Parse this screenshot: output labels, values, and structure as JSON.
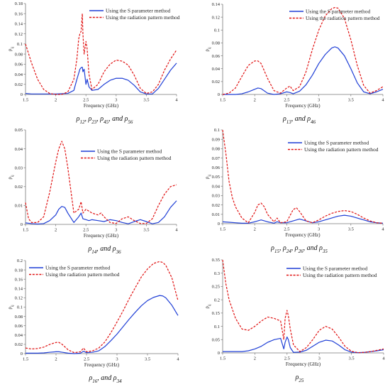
{
  "figure": {
    "xlabel": "Frequency (GHz)",
    "legend": [
      "Using the S parameter method",
      "Using the radiation pattern method"
    ],
    "colors": {
      "s_param": "#1f3fd6",
      "rad_pattern": "#e01010",
      "axis": "#777777"
    }
  },
  "chart_data": [
    {
      "type": "line",
      "caption": "ρ12, ρ23, ρ45, and ρ56",
      "ylabel": "ρ_ij",
      "xlim": [
        1.5,
        4
      ],
      "ylim": [
        0,
        0.18
      ],
      "xticks": [
        "1.5",
        "2",
        "2.5",
        "3",
        "3.5",
        "4"
      ],
      "yticks": [
        "0",
        "0.02",
        "0.04",
        "0.06",
        "0.08",
        "0.1",
        "0.12",
        "0.14",
        "0.16",
        "0.18"
      ],
      "series": [
        {
          "name": "Using the S parameter method",
          "style": "solid",
          "x": [
            1.5,
            1.6,
            1.8,
            2.0,
            2.2,
            2.3,
            2.35,
            2.4,
            2.42,
            2.44,
            2.45,
            2.47,
            2.5,
            2.52,
            2.55,
            2.6,
            2.7,
            2.8,
            2.9,
            3.0,
            3.1,
            3.2,
            3.3,
            3.4,
            3.5,
            3.6,
            3.7,
            3.8,
            3.9,
            4.0
          ],
          "y": [
            0.002,
            0.001,
            0.001,
            0.001,
            0.002,
            0.008,
            0.03,
            0.05,
            0.053,
            0.054,
            0.045,
            0.05,
            0.02,
            0.03,
            0.015,
            0.008,
            0.01,
            0.02,
            0.028,
            0.032,
            0.032,
            0.028,
            0.018,
            0.005,
            0.001,
            0.001,
            0.012,
            0.03,
            0.048,
            0.062
          ]
        },
        {
          "name": "Using the radiation pattern method",
          "style": "dashed",
          "x": [
            1.5,
            1.6,
            1.7,
            1.8,
            1.9,
            2.0,
            2.1,
            2.2,
            2.3,
            2.35,
            2.38,
            2.4,
            2.42,
            2.44,
            2.45,
            2.47,
            2.5,
            2.52,
            2.55,
            2.6,
            2.7,
            2.8,
            2.9,
            3.0,
            3.1,
            3.2,
            3.3,
            3.4,
            3.5,
            3.6,
            3.7,
            3.8,
            3.9,
            4.0
          ],
          "y": [
            0.1,
            0.062,
            0.03,
            0.01,
            0.002,
            0.0,
            0.0,
            0.005,
            0.03,
            0.07,
            0.11,
            0.12,
            0.125,
            0.16,
            0.12,
            0.08,
            0.105,
            0.09,
            0.04,
            0.01,
            0.02,
            0.045,
            0.06,
            0.068,
            0.066,
            0.058,
            0.038,
            0.012,
            0.002,
            0.005,
            0.02,
            0.048,
            0.07,
            0.088
          ]
        }
      ]
    },
    {
      "type": "line",
      "caption": "ρ13, and ρ46",
      "ylabel": "ρ_ij",
      "xlim": [
        1.5,
        4
      ],
      "ylim": [
        0,
        0.14
      ],
      "xticks": [
        "1.5",
        "2",
        "2.5",
        "3",
        "3.5",
        "4"
      ],
      "yticks": [
        "0",
        "0.02",
        "0.04",
        "0.06",
        "0.08",
        "0.1",
        "0.12",
        "0.14"
      ],
      "series": [
        {
          "name": "Using the S parameter method",
          "style": "solid",
          "x": [
            1.5,
            1.7,
            1.8,
            1.9,
            2.0,
            2.05,
            2.1,
            2.2,
            2.3,
            2.4,
            2.5,
            2.55,
            2.6,
            2.7,
            2.8,
            2.9,
            3.0,
            3.1,
            3.2,
            3.25,
            3.3,
            3.4,
            3.5,
            3.6,
            3.7,
            3.8,
            3.9,
            4.0
          ],
          "y": [
            0.0,
            0.0,
            0.001,
            0.004,
            0.008,
            0.01,
            0.009,
            0.002,
            0.0,
            0.001,
            0.004,
            0.003,
            0.001,
            0.005,
            0.015,
            0.03,
            0.048,
            0.062,
            0.072,
            0.074,
            0.072,
            0.06,
            0.04,
            0.018,
            0.004,
            0.001,
            0.004,
            0.008
          ]
        },
        {
          "name": "Using the radiation pattern method",
          "style": "dashed",
          "x": [
            1.5,
            1.6,
            1.7,
            1.8,
            1.9,
            2.0,
            2.05,
            2.1,
            2.2,
            2.3,
            2.4,
            2.5,
            2.55,
            2.6,
            2.7,
            2.8,
            2.9,
            3.0,
            3.1,
            3.2,
            3.25,
            3.3,
            3.4,
            3.5,
            3.6,
            3.7,
            3.8,
            3.9,
            4.0
          ],
          "y": [
            0.0,
            0.002,
            0.01,
            0.028,
            0.045,
            0.052,
            0.052,
            0.048,
            0.025,
            0.006,
            0.002,
            0.01,
            0.013,
            0.006,
            0.012,
            0.035,
            0.07,
            0.1,
            0.122,
            0.133,
            0.135,
            0.134,
            0.118,
            0.085,
            0.045,
            0.014,
            0.002,
            0.006,
            0.012
          ]
        }
      ]
    },
    {
      "type": "line",
      "caption": "ρ14, and ρ36",
      "ylabel": "ρ_ij",
      "xlim": [
        1.5,
        4
      ],
      "ylim": [
        0,
        0.05
      ],
      "xticks": [
        "1.5",
        "2",
        "2.5",
        "3",
        "3.5",
        "4"
      ],
      "yticks": [
        "0",
        "0.01",
        "0.02",
        "0.03",
        "0.04",
        "0.05"
      ],
      "series": [
        {
          "name": "Using the S parameter method",
          "style": "solid",
          "x": [
            1.5,
            1.6,
            1.7,
            1.8,
            1.9,
            2.0,
            2.05,
            2.1,
            2.15,
            2.2,
            2.3,
            2.38,
            2.42,
            2.45,
            2.5,
            2.55,
            2.6,
            2.7,
            2.8,
            2.9,
            3.0,
            3.1,
            3.2,
            3.3,
            3.4,
            3.5,
            3.6,
            3.7,
            3.8,
            3.9,
            4.0
          ],
          "y": [
            0.0008,
            0.0004,
            0.0002,
            0.0004,
            0.002,
            0.005,
            0.008,
            0.0095,
            0.009,
            0.006,
            0.001,
            0.004,
            0.006,
            0.003,
            0.0025,
            0.002,
            0.0025,
            0.002,
            0.0015,
            0.0025,
            0.002,
            0.001,
            0.0003,
            0.0015,
            0.0025,
            0.0015,
            0.0003,
            0.001,
            0.004,
            0.009,
            0.0125
          ]
        },
        {
          "name": "Using the radiation pattern method",
          "style": "dashed",
          "x": [
            1.5,
            1.55,
            1.6,
            1.7,
            1.8,
            1.9,
            2.0,
            2.05,
            2.1,
            2.15,
            2.2,
            2.3,
            2.38,
            2.42,
            2.45,
            2.5,
            2.55,
            2.6,
            2.7,
            2.75,
            2.8,
            2.9,
            3.0,
            3.1,
            3.2,
            3.3,
            3.4,
            3.5,
            3.6,
            3.7,
            3.8,
            3.9,
            4.0
          ],
          "y": [
            0.0115,
            0.003,
            0.001,
            0.001,
            0.004,
            0.017,
            0.033,
            0.04,
            0.044,
            0.04,
            0.03,
            0.006,
            0.008,
            0.012,
            0.006,
            0.008,
            0.007,
            0.006,
            0.005,
            0.006,
            0.004,
            0.001,
            0.0005,
            0.003,
            0.004,
            0.002,
            0.0005,
            0.0005,
            0.003,
            0.01,
            0.016,
            0.02,
            0.021
          ]
        }
      ]
    },
    {
      "type": "line",
      "caption": "ρ15, ρ24, ρ26, and ρ35",
      "ylabel": "ρ_ij",
      "xlim": [
        1.5,
        4
      ],
      "ylim": [
        0,
        0.1
      ],
      "xticks": [
        "1.5",
        "2",
        "2.5",
        "3",
        "3.5",
        "4"
      ],
      "yticks": [
        "0",
        "0.01",
        "0.02",
        "0.03",
        "0.04",
        "0.05",
        "0.06",
        "0.07",
        "0.08",
        "0.09",
        "0.1"
      ],
      "series": [
        {
          "name": "Using the S parameter method",
          "style": "solid",
          "x": [
            1.5,
            1.6,
            1.7,
            1.8,
            1.9,
            2.0,
            2.1,
            2.2,
            2.3,
            2.35,
            2.4,
            2.5,
            2.6,
            2.7,
            2.8,
            2.9,
            3.0,
            3.1,
            3.2,
            3.3,
            3.4,
            3.5,
            3.6,
            3.7,
            3.8,
            3.9,
            4.0
          ],
          "y": [
            0.002,
            0.0015,
            0.001,
            0.0005,
            0.0005,
            0.002,
            0.004,
            0.002,
            0.0005,
            0.002,
            0.001,
            0.001,
            0.003,
            0.005,
            0.003,
            0.001,
            0.002,
            0.004,
            0.006,
            0.008,
            0.009,
            0.008,
            0.006,
            0.004,
            0.002,
            0.001,
            0.0005
          ]
        },
        {
          "name": "Using the radiation pattern method",
          "style": "dashed",
          "x": [
            1.5,
            1.55,
            1.6,
            1.65,
            1.7,
            1.8,
            1.9,
            2.0,
            2.05,
            2.1,
            2.15,
            2.2,
            2.3,
            2.35,
            2.4,
            2.5,
            2.6,
            2.65,
            2.7,
            2.8,
            2.9,
            3.0,
            3.1,
            3.2,
            3.3,
            3.4,
            3.5,
            3.6,
            3.7,
            3.8,
            3.9,
            4.0
          ],
          "y": [
            0.1,
            0.075,
            0.045,
            0.028,
            0.018,
            0.006,
            0.001,
            0.012,
            0.02,
            0.022,
            0.018,
            0.01,
            0.002,
            0.006,
            0.001,
            0.002,
            0.015,
            0.017,
            0.013,
            0.003,
            0.001,
            0.004,
            0.008,
            0.011,
            0.013,
            0.014,
            0.013,
            0.01,
            0.006,
            0.003,
            0.001,
            0.0005
          ]
        }
      ]
    },
    {
      "type": "line",
      "caption": "ρ16, and ρ34",
      "ylabel": "ρ_ij",
      "xlim": [
        1.5,
        4
      ],
      "ylim": [
        0,
        0.2
      ],
      "xticks": [
        "1.5",
        "2",
        "2.5",
        "3",
        "3.5",
        "4"
      ],
      "yticks": [
        "0",
        "0.02",
        "0.04",
        "0.06",
        "0.08",
        "0.1",
        "0.12",
        "0.14",
        "0.16",
        "0.18",
        "0.2"
      ],
      "series": [
        {
          "name": "Using the S parameter method",
          "style": "solid",
          "x": [
            1.5,
            1.6,
            1.7,
            1.8,
            1.9,
            2.0,
            2.05,
            2.1,
            2.2,
            2.3,
            2.4,
            2.45,
            2.5,
            2.6,
            2.7,
            2.8,
            2.9,
            3.0,
            3.1,
            3.2,
            3.3,
            3.4,
            3.5,
            3.6,
            3.7,
            3.75,
            3.8,
            3.9,
            4.0
          ],
          "y": [
            0.001,
            0.001,
            0.001,
            0.0015,
            0.003,
            0.004,
            0.004,
            0.003,
            0.001,
            0.0,
            0.001,
            0.005,
            0.002,
            0.003,
            0.006,
            0.015,
            0.028,
            0.042,
            0.058,
            0.074,
            0.089,
            0.103,
            0.114,
            0.121,
            0.125,
            0.124,
            0.12,
            0.104,
            0.082
          ]
        },
        {
          "name": "Using the radiation pattern method",
          "style": "dashed",
          "x": [
            1.5,
            1.6,
            1.7,
            1.8,
            1.9,
            2.0,
            2.05,
            2.1,
            2.2,
            2.3,
            2.4,
            2.45,
            2.5,
            2.6,
            2.7,
            2.8,
            2.9,
            3.0,
            3.1,
            3.2,
            3.3,
            3.4,
            3.5,
            3.6,
            3.7,
            3.75,
            3.8,
            3.9,
            4.0
          ],
          "y": [
            0.012,
            0.01,
            0.011,
            0.014,
            0.02,
            0.024,
            0.024,
            0.02,
            0.008,
            0.002,
            0.004,
            0.012,
            0.004,
            0.006,
            0.012,
            0.025,
            0.045,
            0.068,
            0.092,
            0.118,
            0.142,
            0.165,
            0.182,
            0.194,
            0.198,
            0.196,
            0.19,
            0.163,
            0.114
          ]
        }
      ]
    },
    {
      "type": "line",
      "caption": "ρ25",
      "ylabel": "ρ_ij",
      "xlim": [
        1.5,
        4
      ],
      "ylim": [
        0,
        0.35
      ],
      "xticks": [
        "1.5",
        "2",
        "2.5",
        "3",
        "3.5",
        "4"
      ],
      "yticks": [
        "0",
        "0.05",
        "0.1",
        "0.15",
        "0.2",
        "0.25",
        "0.3",
        "0.35"
      ],
      "series": [
        {
          "name": "Using the S parameter method",
          "style": "solid",
          "x": [
            1.5,
            1.6,
            1.7,
            1.8,
            1.9,
            2.0,
            2.1,
            2.2,
            2.3,
            2.4,
            2.45,
            2.47,
            2.5,
            2.52,
            2.55,
            2.6,
            2.7,
            2.8,
            2.9,
            3.0,
            3.1,
            3.2,
            3.3,
            3.4,
            3.5,
            3.6,
            3.7,
            3.8,
            3.9,
            4.0
          ],
          "y": [
            0.005,
            0.005,
            0.005,
            0.005,
            0.008,
            0.015,
            0.025,
            0.04,
            0.05,
            0.055,
            0.015,
            0.04,
            0.06,
            0.05,
            0.02,
            0.002,
            0.003,
            0.01,
            0.025,
            0.04,
            0.048,
            0.045,
            0.03,
            0.012,
            0.003,
            0.001,
            0.002,
            0.005,
            0.008,
            0.012
          ]
        },
        {
          "name": "Using the radiation pattern method",
          "style": "dashed",
          "x": [
            1.5,
            1.55,
            1.6,
            1.7,
            1.8,
            1.9,
            2.0,
            2.1,
            2.2,
            2.3,
            2.4,
            2.45,
            2.47,
            2.5,
            2.52,
            2.55,
            2.6,
            2.7,
            2.8,
            2.9,
            3.0,
            3.1,
            3.2,
            3.3,
            3.4,
            3.5,
            3.6,
            3.7,
            3.8,
            3.9,
            4.0
          ],
          "y": [
            0.35,
            0.26,
            0.2,
            0.13,
            0.09,
            0.085,
            0.1,
            0.12,
            0.135,
            0.13,
            0.12,
            0.05,
            0.13,
            0.16,
            0.14,
            0.09,
            0.03,
            0.005,
            0.02,
            0.05,
            0.085,
            0.1,
            0.09,
            0.06,
            0.025,
            0.006,
            0.001,
            0.002,
            0.005,
            0.01,
            0.015
          ]
        }
      ]
    }
  ]
}
